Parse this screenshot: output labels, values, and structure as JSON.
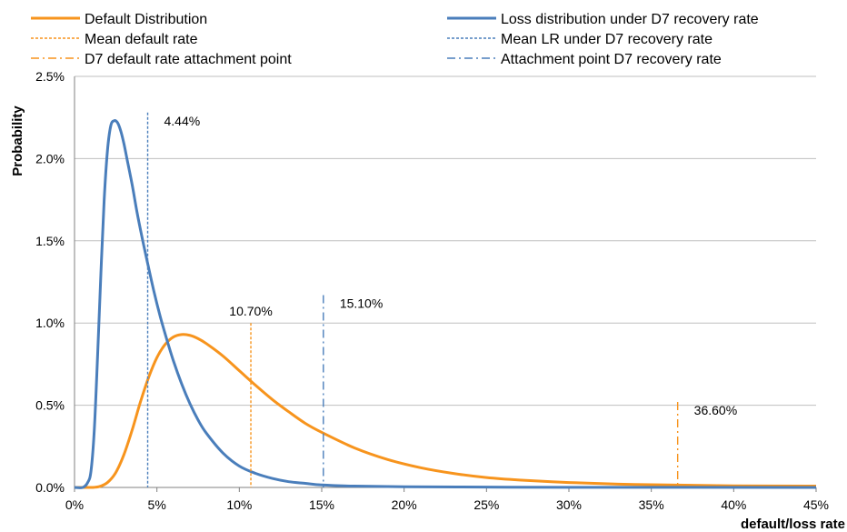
{
  "chart_data": {
    "type": "line",
    "xlabel": "default/loss rate",
    "ylabel": "Probability",
    "xlim": [
      0,
      45
    ],
    "ylim": [
      0,
      2.5
    ],
    "x_ticks": [
      0,
      5,
      10,
      15,
      20,
      25,
      30,
      35,
      40,
      45
    ],
    "x_tick_labels": [
      "0%",
      "5%",
      "10%",
      "15%",
      "20%",
      "25%",
      "30%",
      "35%",
      "40%",
      "45%"
    ],
    "y_ticks": [
      0,
      0.5,
      1.0,
      1.5,
      2.0,
      2.5
    ],
    "y_tick_labels": [
      "0.0%",
      "0.5%",
      "1.0%",
      "1.5%",
      "2.0%",
      "2.5%"
    ],
    "grid": "horizontal",
    "legend_position": "top",
    "series": [
      {
        "name": "Default Distribution",
        "color": "#F7941D",
        "style": "solid",
        "x": [
          0,
          1.0,
          1.5,
          2.0,
          2.5,
          3.0,
          3.5,
          4.0,
          4.5,
          5.0,
          5.5,
          6.0,
          6.5,
          7.0,
          7.5,
          8.0,
          9.0,
          10.0,
          11.0,
          12.0,
          13.0,
          14.0,
          15.0,
          17.0,
          19.0,
          21.0,
          23.0,
          25.0,
          27.0,
          30.0,
          33.0,
          36.0,
          40.0,
          45.0
        ],
        "y": [
          0,
          0,
          0.005,
          0.03,
          0.09,
          0.2,
          0.35,
          0.52,
          0.67,
          0.79,
          0.87,
          0.915,
          0.93,
          0.925,
          0.905,
          0.875,
          0.8,
          0.71,
          0.62,
          0.535,
          0.46,
          0.39,
          0.335,
          0.24,
          0.17,
          0.12,
          0.085,
          0.06,
          0.045,
          0.03,
          0.02,
          0.015,
          0.01,
          0.008
        ]
      },
      {
        "name": "Loss distribution under D7  recovery rate",
        "color": "#4A7EBB",
        "style": "solid",
        "x": [
          0,
          0.5,
          0.8,
          1.0,
          1.2,
          1.4,
          1.6,
          1.8,
          2.0,
          2.2,
          2.4,
          2.6,
          2.8,
          3.0,
          3.2,
          3.5,
          3.8,
          4.1,
          4.4,
          4.8,
          5.2,
          5.6,
          6.0,
          6.5,
          7.0,
          7.5,
          8.0,
          9.0,
          10.0,
          11.0,
          12.0,
          13.0,
          14.0,
          15.0,
          17.0,
          20.0,
          25.0,
          30.0,
          45.0
        ],
        "y": [
          0,
          0,
          0.03,
          0.1,
          0.35,
          0.8,
          1.3,
          1.75,
          2.05,
          2.2,
          2.23,
          2.22,
          2.17,
          2.09,
          1.99,
          1.84,
          1.67,
          1.52,
          1.38,
          1.2,
          1.04,
          0.9,
          0.77,
          0.63,
          0.51,
          0.41,
          0.33,
          0.21,
          0.13,
          0.085,
          0.055,
          0.035,
          0.025,
          0.015,
          0.008,
          0.004,
          0.002,
          0.001,
          0
        ]
      }
    ],
    "markers": [
      {
        "name": "Mean default rate",
        "x": 10.7,
        "y_top": 1.0,
        "label": "10.70%",
        "color": "#F7941D",
        "style": "dotted"
      },
      {
        "name": "Mean LR under D7 recovery rate",
        "x": 4.44,
        "y_top": 2.28,
        "label": "4.44%",
        "color": "#4A7EBB",
        "style": "dotted"
      },
      {
        "name": "D7 default rate attachment point",
        "x": 36.6,
        "y_top": 0.52,
        "label": "36.60%",
        "color": "#F7941D",
        "style": "dashdot"
      },
      {
        "name": "Attachment point D7 recovery rate",
        "x": 15.1,
        "y_top": 1.17,
        "label": "15.10%",
        "color": "#4A7EBB",
        "style": "dashdot"
      }
    ],
    "legend": {
      "left": [
        {
          "label": "Default Distribution",
          "color": "#F7941D",
          "style": "solid"
        },
        {
          "label": "Mean default rate",
          "color": "#F7941D",
          "style": "dotted"
        },
        {
          "label": "D7 default rate attachment point",
          "color": "#F7941D",
          "style": "dashdot"
        }
      ],
      "right": [
        {
          "label": "Loss distribution under D7  recovery rate",
          "color": "#4A7EBB",
          "style": "solid"
        },
        {
          "label": "Mean LR under D7 recovery rate",
          "color": "#4A7EBB",
          "style": "dotted"
        },
        {
          "label": "Attachment point D7 recovery rate",
          "color": "#4A7EBB",
          "style": "dashdot"
        }
      ]
    }
  }
}
